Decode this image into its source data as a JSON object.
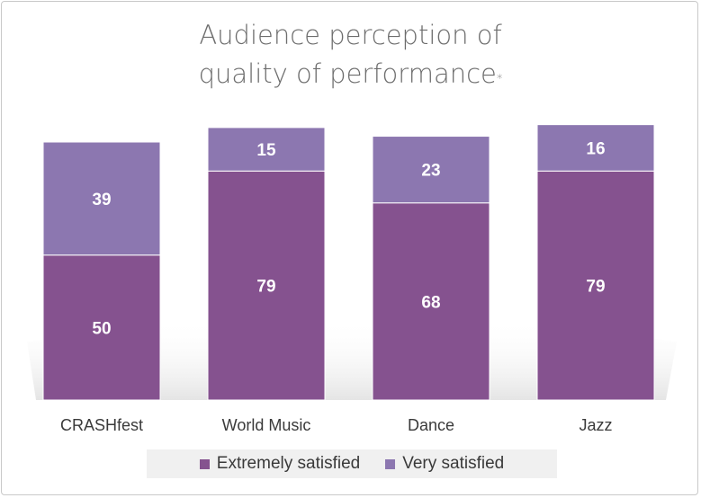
{
  "title_line1": "Audience perception of",
  "title_line2": "quality of performance",
  "title_mark": "*",
  "colors": {
    "extremely": "#85528f",
    "very": "#8c77b0",
    "label": "#ffffff",
    "axis_text": "#3a3a3a"
  },
  "chart_data": {
    "type": "bar",
    "stacked": true,
    "title": "Audience perception of quality of performance*",
    "categories": [
      "CRASHfest",
      "World Music",
      "Dance",
      "Jazz"
    ],
    "series": [
      {
        "name": "Extremely satisfied",
        "values": [
          50,
          79,
          68,
          79
        ]
      },
      {
        "name": "Very satisfied",
        "values": [
          39,
          15,
          23,
          16
        ]
      }
    ],
    "ylim": [
      0,
      95
    ],
    "grid": false,
    "legend": "bottom"
  }
}
